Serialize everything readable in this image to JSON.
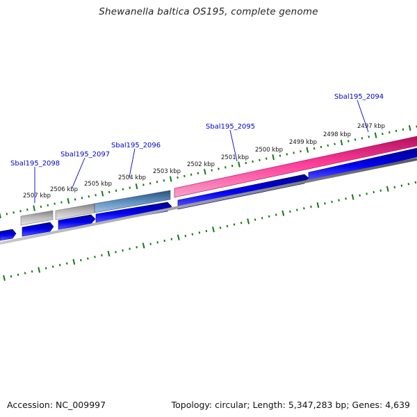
{
  "title": "Shewanella baltica OS195, complete genome",
  "footer": {
    "accession": "Accession: NC_009997",
    "summary": "Topology: circular; Length: 5,347,283 bp; Genes: 4,639"
  },
  "scale_labels": [
    {
      "text": "2507 kbp"
    },
    {
      "text": "2506 kbp"
    },
    {
      "text": "2505 kbp"
    },
    {
      "text": "2504 kbp"
    },
    {
      "text": "2503 kbp"
    },
    {
      "text": "2502 kbp"
    },
    {
      "text": "2501 kbp"
    },
    {
      "text": "2500 kbp"
    },
    {
      "text": "2499 kbp"
    },
    {
      "text": "2498 kbp"
    },
    {
      "text": "2497 kbp"
    }
  ],
  "gene_labels": [
    {
      "text": "Sbal195_2098"
    },
    {
      "text": "Sbal195_2097"
    },
    {
      "text": "Sbal195_2096"
    },
    {
      "text": "Sbal195_2095"
    },
    {
      "text": "Sbal195_2094"
    }
  ],
  "colors": {
    "cds": "#0000ee",
    "pink_feature": "#ee2288",
    "steel_feature": "#4f7fae",
    "gray_feature": "#aaaaaa",
    "backbone": "#7a7a7a",
    "ticks": "#117711",
    "label_text": "#0000cc"
  }
}
